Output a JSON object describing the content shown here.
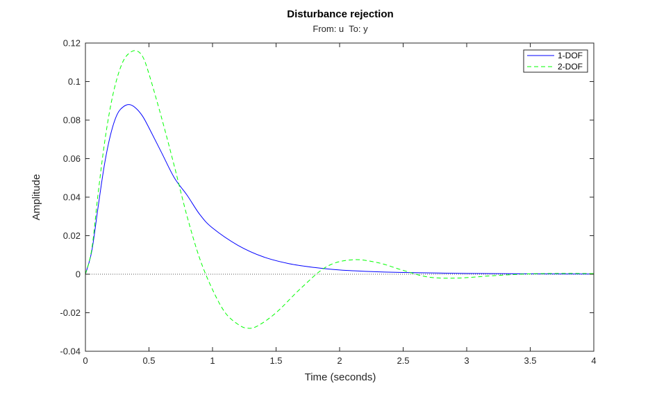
{
  "chart_data": {
    "type": "line",
    "title": "Disturbance rejection",
    "subtitle": "From: u  To: y",
    "xlabel": "Time (seconds)",
    "ylabel": "Amplitude",
    "xlim": [
      0,
      4
    ],
    "ylim": [
      -0.04,
      0.12
    ],
    "xticks": [
      0,
      0.5,
      1,
      1.5,
      2,
      2.5,
      3,
      3.5,
      4
    ],
    "xtick_labels": [
      "0",
      "0.5",
      "1",
      "1.5",
      "2",
      "2.5",
      "3",
      "3.5",
      "4"
    ],
    "yticks": [
      -0.04,
      -0.02,
      0,
      0.02,
      0.04,
      0.06,
      0.08,
      0.1,
      0.12
    ],
    "ytick_labels": [
      "-0.04",
      "-0.02",
      "0",
      "0.02",
      "0.04",
      "0.06",
      "0.08",
      "0.1",
      "0.12"
    ],
    "grid": false,
    "zero_reference_line": true,
    "legend_position": "top-right",
    "series": [
      {
        "name": "1-DOF",
        "color": "#0000ff",
        "style": "solid",
        "x": [
          0,
          0.05,
          0.1,
          0.15,
          0.2,
          0.25,
          0.3,
          0.35,
          0.4,
          0.45,
          0.5,
          0.6,
          0.7,
          0.8,
          0.9,
          1.0,
          1.2,
          1.4,
          1.6,
          1.8,
          2.0,
          2.2,
          2.5,
          3.0,
          3.5,
          4.0
        ],
        "y": [
          0,
          0.012,
          0.035,
          0.057,
          0.073,
          0.083,
          0.087,
          0.088,
          0.086,
          0.082,
          0.076,
          0.063,
          0.05,
          0.041,
          0.031,
          0.024,
          0.015,
          0.009,
          0.0055,
          0.0035,
          0.0022,
          0.0015,
          0.0009,
          0.0004,
          0.0002,
          0.0001
        ]
      },
      {
        "name": "2-DOF",
        "color": "#00ff00",
        "style": "dashed",
        "x": [
          0,
          0.05,
          0.1,
          0.15,
          0.2,
          0.25,
          0.3,
          0.35,
          0.4,
          0.45,
          0.5,
          0.6,
          0.7,
          0.8,
          0.9,
          1.0,
          1.1,
          1.2,
          1.27,
          1.35,
          1.5,
          1.7,
          1.9,
          2.1,
          2.3,
          2.5,
          2.7,
          2.93,
          3.2,
          3.5,
          3.8,
          4.0
        ],
        "y": [
          0,
          0.013,
          0.042,
          0.068,
          0.088,
          0.102,
          0.111,
          0.115,
          0.116,
          0.113,
          0.104,
          0.081,
          0.056,
          0.03,
          0.008,
          -0.008,
          -0.02,
          -0.026,
          -0.028,
          -0.027,
          -0.02,
          -0.007,
          0.004,
          0.0075,
          0.006,
          0.002,
          -0.0015,
          -0.002,
          -0.0008,
          0.0002,
          0.0004,
          0.0003
        ]
      }
    ]
  }
}
